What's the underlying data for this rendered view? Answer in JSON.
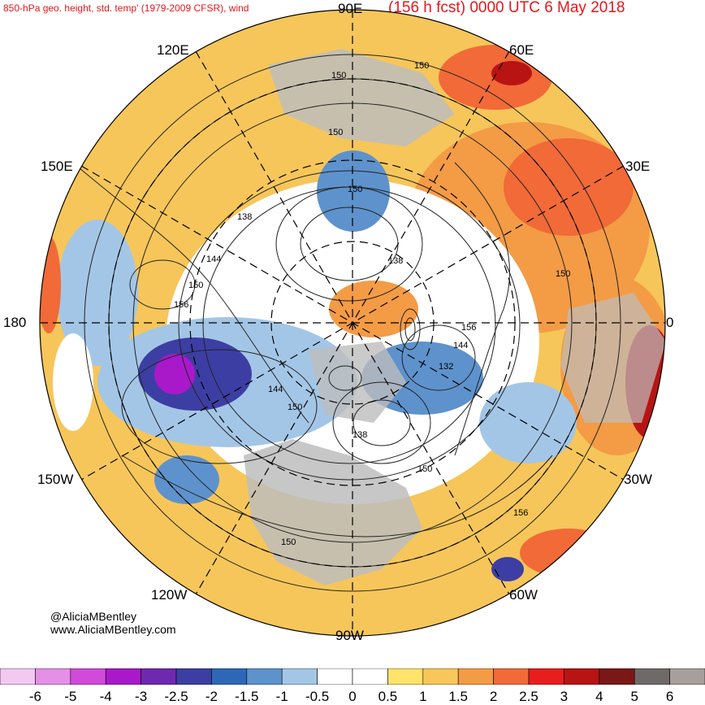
{
  "header": {
    "left_title": "850-hPa geo. height, std. temp' (1979-2009 CFSR), wind",
    "right_title": "(156 h fcst) 0000 UTC 6 May 2018"
  },
  "longitude_labels": {
    "e90": "90E",
    "e60": "60E",
    "e30": "30E",
    "zero": "0",
    "e120": "120E",
    "e150": "150E",
    "lon180": "180",
    "w150": "150W",
    "w120": "120W",
    "w90": "90W",
    "w60": "60W",
    "w30": "30W"
  },
  "contour_labels": [
    "150",
    "150",
    "150",
    "150",
    "138",
    "144",
    "150",
    "156",
    "138",
    "156",
    "144",
    "132",
    "144",
    "150",
    "138",
    "150",
    "150",
    "156",
    "150"
  ],
  "credit": {
    "handle": "@AliciaMBentley",
    "website": "www.AliciaMBentley.com"
  },
  "colorbar": {
    "labels": [
      "-6",
      "-5",
      "-4",
      "-3",
      "-2.5",
      "-2",
      "-1.5",
      "-1",
      "-0.5",
      "0",
      "0.5",
      "1",
      "1.5",
      "2",
      "2.5",
      "3",
      "4",
      "5",
      "6"
    ],
    "colors": [
      "#f3c9f1",
      "#e58fe6",
      "#d14ad9",
      "#a919c9",
      "#6f29b1",
      "#3d3ea3",
      "#2e67b6",
      "#5e92cc",
      "#a4c6e6",
      "#ffffff",
      "#ffffff",
      "#ffe36a",
      "#f8c75b",
      "#f49b45",
      "#f16a37",
      "#e71e1d",
      "#b81414",
      "#7a1717",
      "#6e6a6a",
      "#a89e9c"
    ]
  },
  "colors": {
    "title": "#e8161b",
    "land": "#bdbdbd"
  }
}
